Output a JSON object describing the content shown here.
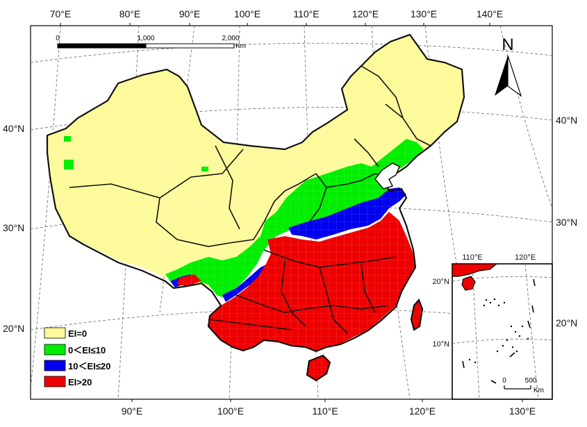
{
  "top_ticks": [
    "70°E",
    "80°E",
    "90°E",
    "100°E",
    "110°E",
    "120°E",
    "130°E",
    "140°E"
  ],
  "bottom_ticks": [
    "90°E",
    "100°E",
    "110°E",
    "120°E",
    "130°E"
  ],
  "left_ticks": [
    "40°N",
    "30°N",
    "20°N"
  ],
  "right_ticks": [
    "40°N",
    "30°N",
    "20°N"
  ],
  "scale_bar": {
    "labels": [
      "0",
      "1,000",
      "2,000"
    ],
    "unit": "Km"
  },
  "north_arrow": {
    "label": "N",
    "icon": "north-arrow-icon"
  },
  "legend": [
    {
      "label": "EI=0",
      "color": "#fdfa9c"
    },
    {
      "label": "0＜EI≤10",
      "color": "#00ee00"
    },
    {
      "label": "10＜EI≤20",
      "color": "#0000ee"
    },
    {
      "label": "EI>20",
      "color": "#ee0000"
    }
  ],
  "inset": {
    "top_ticks": [
      "110°E",
      "120°E"
    ],
    "left_ticks": [
      "20°N",
      "10°N"
    ],
    "scale_labels": [
      "0",
      "500"
    ],
    "scale_unit": "Km"
  }
}
